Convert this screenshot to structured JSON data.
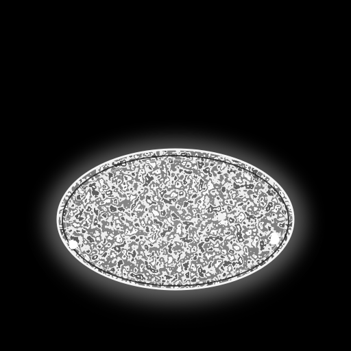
{
  "image": {
    "subject": "",
    "colors": {
      "background": "#000000",
      "glow": "#ffffff",
      "texture_dark": "#111111",
      "texture_mid": "#9a9a9a",
      "texture_light": "#f2f2f2"
    }
  }
}
